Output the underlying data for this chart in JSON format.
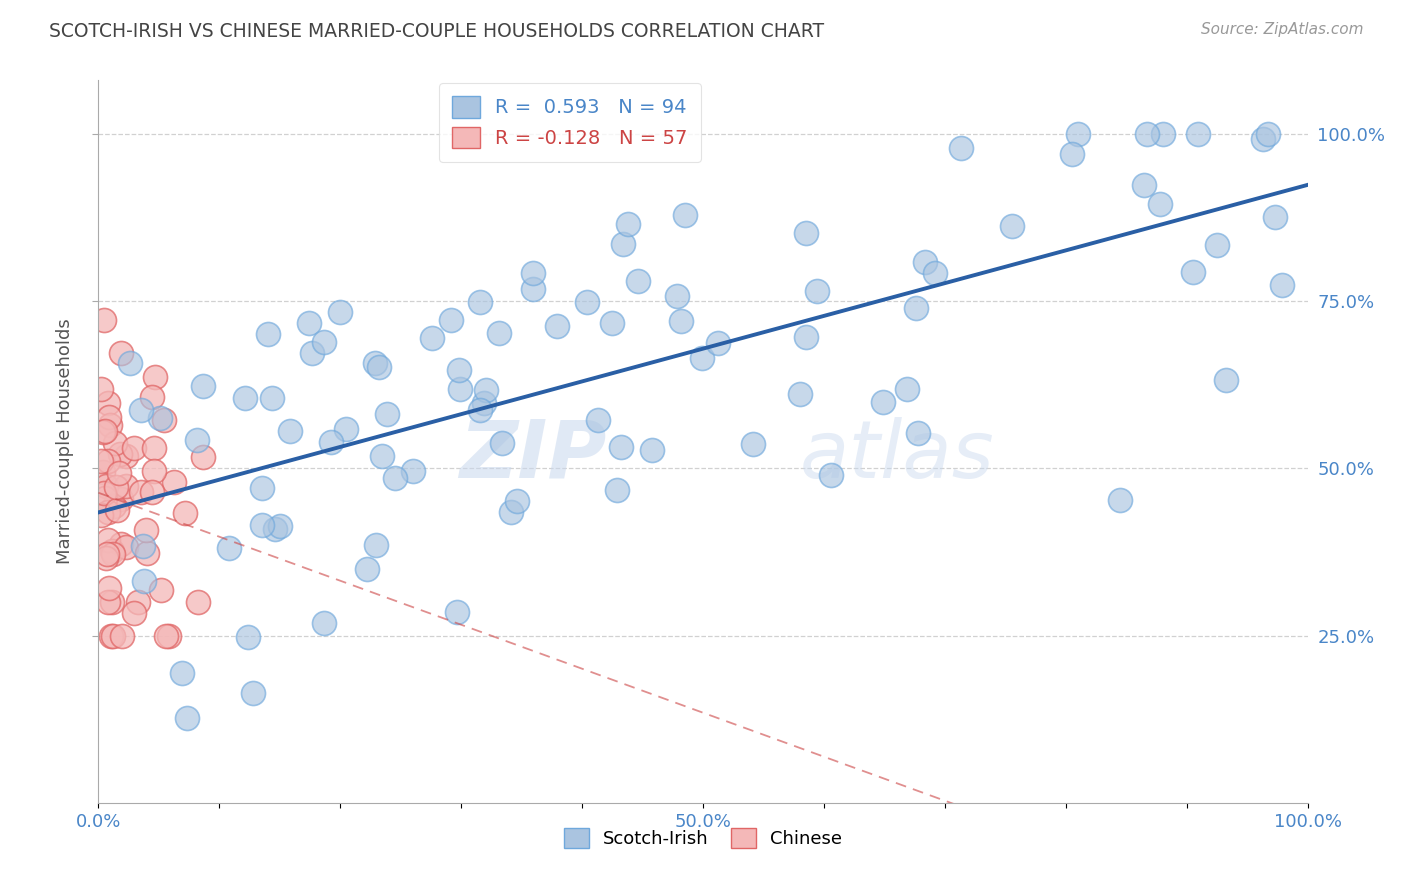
{
  "title": "SCOTCH-IRISH VS CHINESE MARRIED-COUPLE HOUSEHOLDS CORRELATION CHART",
  "source_text": "Source: ZipAtlas.com",
  "ylabel": "Married-couple Households",
  "right_yticklabels": [
    "25.0%",
    "50.0%",
    "75.0%",
    "100.0%"
  ],
  "right_yticks": [
    0.25,
    0.5,
    0.75,
    1.0
  ],
  "xlim": [
    0.0,
    1.0
  ],
  "ylim": [
    0.0,
    1.08
  ],
  "xticks": [
    0.0,
    0.1,
    0.2,
    0.3,
    0.4,
    0.5,
    0.6,
    0.7,
    0.8,
    0.9,
    1.0
  ],
  "xticklabels": [
    "0.0%",
    "",
    "",
    "",
    "",
    "50.0%",
    "",
    "",
    "",
    "",
    "100.0%"
  ],
  "scotch_irish_color": "#aac4e0",
  "scotch_irish_edge": "#6fa8dc",
  "chinese_color": "#f4b8b8",
  "chinese_edge": "#e06666",
  "regression_blue_color": "#2a5fa5",
  "regression_pink_color": "#cc4444",
  "R_scotch": 0.593,
  "N_scotch": 94,
  "R_chinese": -0.128,
  "N_chinese": 57,
  "grid_color": "#cccccc",
  "background_color": "#ffffff",
  "title_color": "#444444",
  "axis_color": "#4a86c8",
  "watermark_zip": "ZIP",
  "watermark_atlas": "atlas",
  "legend_R_color": "#4a86c8",
  "legend_R2_color": "#cc4444"
}
